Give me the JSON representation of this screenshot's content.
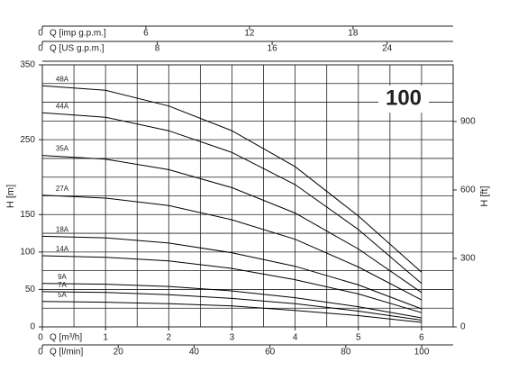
{
  "chart_data": {
    "type": "line",
    "badge": "100",
    "x_label": "Q [m³/h]",
    "y_label": "H [m]",
    "y2_label": "H [ft]",
    "x": [
      0,
      1,
      2,
      3,
      4,
      5,
      6
    ],
    "xlim": [
      0,
      6.5
    ],
    "xticks": [
      0,
      1,
      2,
      3,
      4,
      5,
      6
    ],
    "ylim": [
      0,
      350
    ],
    "yticks": [
      0,
      50,
      100,
      150,
      250,
      350
    ],
    "y2lim": [
      0,
      1148.3
    ],
    "y2ticks": [
      0,
      300,
      600,
      900
    ],
    "xgrid": [
      0,
      0.5,
      1,
      1.5,
      2,
      2.5,
      3,
      3.5,
      4,
      4.5,
      5,
      5.5,
      6,
      6.5
    ],
    "ygrid": [
      0,
      25,
      50,
      75,
      100,
      125,
      150,
      175,
      200,
      225,
      250,
      275,
      300,
      325,
      350
    ],
    "color": "#000000",
    "extra_axes": [
      {
        "position": "top",
        "label": "Q [imp g.p.m.]",
        "xlim": [
          0,
          23.8
        ],
        "xticks": [
          0,
          6,
          12,
          18
        ]
      },
      {
        "position": "top",
        "label": "Q [US g.p.m.]",
        "xlim": [
          0,
          28.6
        ],
        "xticks": [
          0,
          8,
          16,
          24
        ]
      },
      {
        "position": "bottom",
        "label": "Q [l/min]",
        "xlim": [
          0,
          108.3
        ],
        "xticks": [
          0,
          20,
          40,
          60,
          80,
          100
        ]
      }
    ],
    "series": [
      {
        "name": "48A",
        "values": [
          322,
          316,
          295,
          262,
          214,
          148,
          73
        ]
      },
      {
        "name": "44A",
        "values": [
          286,
          280,
          262,
          233,
          190,
          130,
          58
        ]
      },
      {
        "name": "35A",
        "values": [
          229,
          224,
          210,
          186,
          152,
          104,
          46
        ]
      },
      {
        "name": "27A",
        "values": [
          176,
          172,
          162,
          143,
          117,
          80,
          36
        ]
      },
      {
        "name": "18A",
        "values": [
          121,
          119,
          112,
          99,
          81,
          56,
          24
        ]
      },
      {
        "name": "14A",
        "values": [
          95,
          93,
          88,
          78,
          63,
          44,
          19
        ]
      },
      {
        "name": "9A",
        "values": [
          58,
          57,
          54,
          48,
          39,
          27,
          12
        ]
      },
      {
        "name": "7A",
        "values": [
          47,
          46,
          43,
          38,
          31,
          21,
          9
        ]
      },
      {
        "name": "5A",
        "values": [
          34,
          33,
          31,
          28,
          22,
          15,
          6
        ]
      }
    ]
  }
}
